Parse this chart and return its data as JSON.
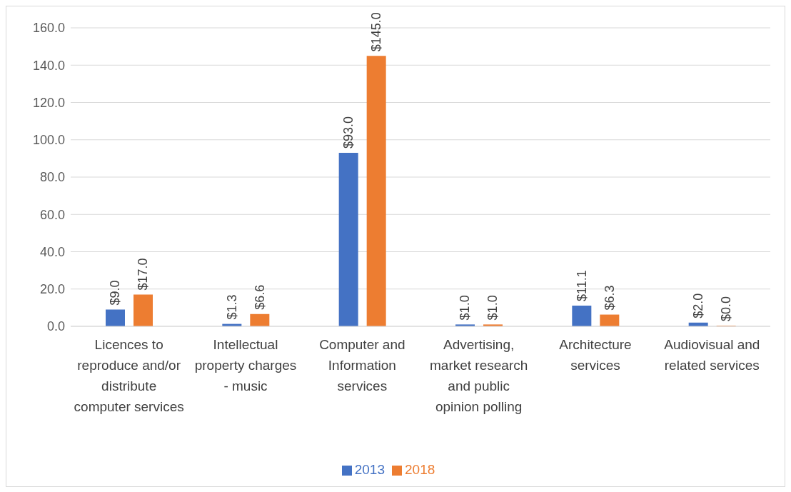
{
  "chart_data": {
    "type": "bar",
    "categories": [
      "Licences to reproduce and/or distribute computer services",
      "Intellectual property charges - music",
      "Computer and Information services",
      "Advertising, market research and public opinion polling",
      "Architecture services",
      "Audiovisual and related services"
    ],
    "series": [
      {
        "name": "2013",
        "color": "#4472c4",
        "values": [
          9.0,
          1.3,
          93.0,
          1.0,
          11.1,
          2.0
        ],
        "value_labels": [
          "$9.0",
          "$1.3",
          "$93.0",
          "$1.0",
          "$11.1",
          "$2.0"
        ]
      },
      {
        "name": "2018",
        "color": "#ed7d31",
        "values": [
          17.0,
          6.6,
          145.0,
          1.0,
          6.3,
          0.0
        ],
        "value_labels": [
          "$17.0",
          "$6.6",
          "$145.0",
          "$1.0",
          "$6.3",
          "$0.0"
        ]
      }
    ],
    "ylim": [
      0,
      160
    ],
    "yticks": [
      {
        "value": 0,
        "label": "0.0"
      },
      {
        "value": 20,
        "label": "20.0"
      },
      {
        "value": 40,
        "label": "40.0"
      },
      {
        "value": 60,
        "label": "60.0"
      },
      {
        "value": 80,
        "label": "80.0"
      },
      {
        "value": 100,
        "label": "100.0"
      },
      {
        "value": 120,
        "label": "120.0"
      },
      {
        "value": 140,
        "label": "140.0"
      },
      {
        "value": 160,
        "label": "160.0"
      }
    ],
    "grid": "y",
    "legend": "bottom"
  }
}
